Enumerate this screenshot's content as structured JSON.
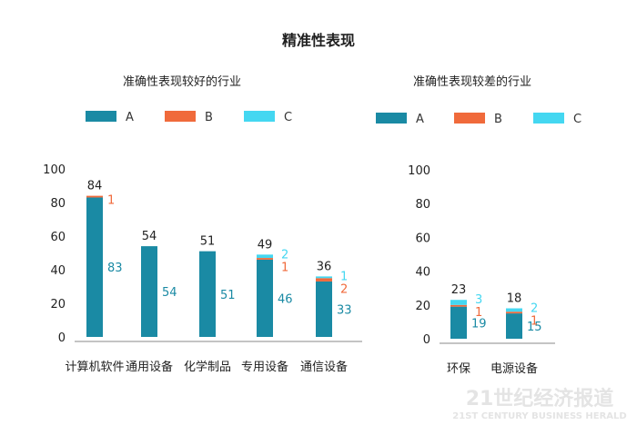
{
  "title": "精准性表现",
  "watermark": {
    "main": "21世纪经济报道",
    "sub": "21ST CENTURY BUSINESS HERALD"
  },
  "colors": {
    "A": "#1a8aa4",
    "B": "#f06a3b",
    "C": "#44d7f1",
    "axis": "#888888",
    "text": "#222222"
  },
  "chart_data": [
    {
      "type": "bar",
      "stacked": true,
      "title": "准确性表现较好的行业",
      "legend": [
        "A",
        "B",
        "C"
      ],
      "legend_position": "top",
      "categories": [
        "计算机软件",
        "通用设备",
        "化学制品",
        "专用设备",
        "通信设备"
      ],
      "series": [
        {
          "name": "A",
          "values": [
            83,
            54,
            51,
            46,
            33
          ]
        },
        {
          "name": "B",
          "values": [
            1,
            0,
            0,
            1,
            2
          ]
        },
        {
          "name": "C",
          "values": [
            0,
            0,
            0,
            2,
            1
          ]
        }
      ],
      "totals": [
        84,
        54,
        51,
        49,
        36
      ],
      "ylim": [
        0,
        100
      ],
      "yticks": [
        0,
        20,
        40,
        60,
        80,
        100
      ],
      "grid": false
    },
    {
      "type": "bar",
      "stacked": true,
      "title": "准确性表现较差的行业",
      "legend": [
        "A",
        "B",
        "C"
      ],
      "legend_position": "top",
      "categories": [
        "环保",
        "电源设备"
      ],
      "series": [
        {
          "name": "A",
          "values": [
            19,
            15
          ]
        },
        {
          "name": "B",
          "values": [
            1,
            1
          ]
        },
        {
          "name": "C",
          "values": [
            3,
            2
          ]
        }
      ],
      "totals": [
        23,
        18
      ],
      "ylim": [
        0,
        100
      ],
      "yticks": [
        0,
        20,
        40,
        60,
        80,
        100
      ],
      "grid": false
    }
  ]
}
